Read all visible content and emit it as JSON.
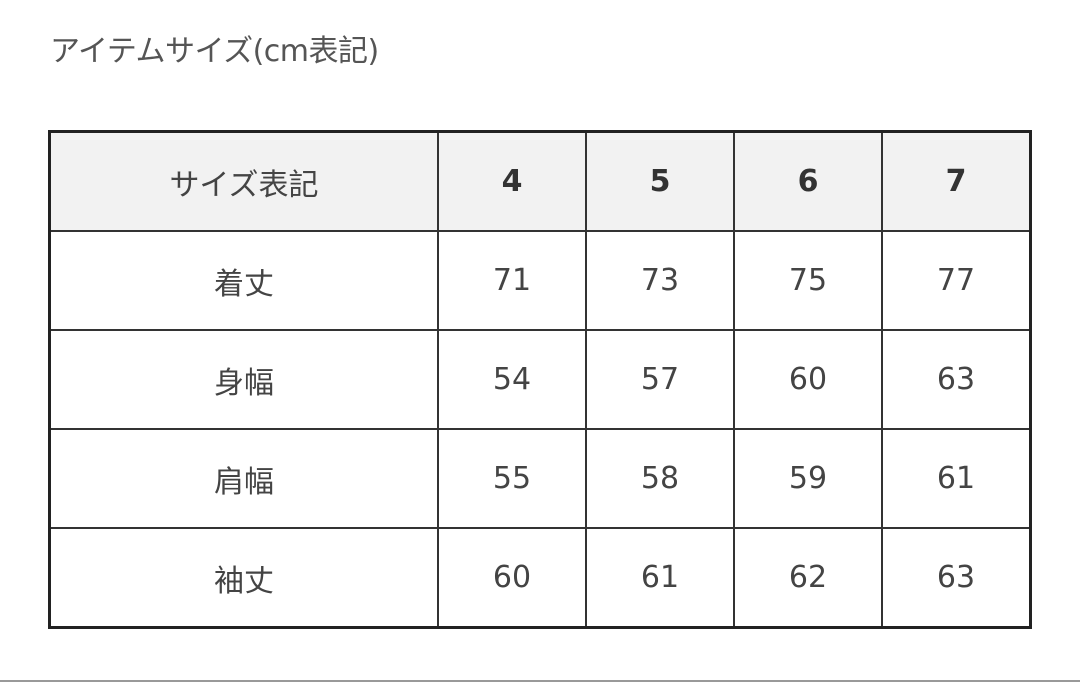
{
  "title": "アイテムサイズ(cm表記)",
  "table": {
    "header": [
      "サイズ表記",
      "4",
      "5",
      "6",
      "7"
    ],
    "rows": [
      [
        "着丈",
        "71",
        "73",
        "75",
        "77"
      ],
      [
        "身幅",
        "54",
        "57",
        "60",
        "63"
      ],
      [
        "肩幅",
        "55",
        "58",
        "59",
        "61"
      ],
      [
        "袖丈",
        "60",
        "61",
        "62",
        "63"
      ]
    ]
  }
}
